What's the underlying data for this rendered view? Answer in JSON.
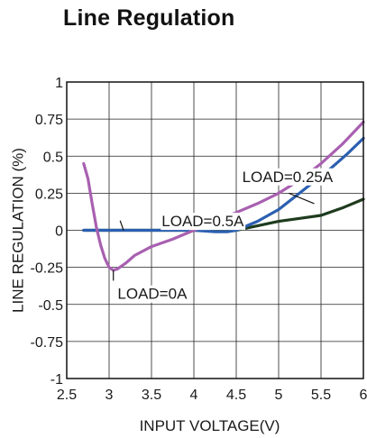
{
  "chart_data": {
    "type": "line",
    "title": "Line Regulation",
    "xlabel": "INPUT VOLTAGE(V)",
    "ylabel": "LINE REGULATION (%)",
    "xlim": [
      2.5,
      6
    ],
    "ylim": [
      -1,
      1
    ],
    "xticks": [
      2.5,
      3,
      3.5,
      4,
      4.5,
      5,
      5.5,
      6
    ],
    "xtick_labels": [
      "2.5",
      "3",
      "3.5",
      "4",
      "4.5",
      "5",
      "5.5",
      "6"
    ],
    "yticks": [
      1,
      0.75,
      0.5,
      0.25,
      0,
      -0.25,
      -0.5,
      -0.75,
      -1
    ],
    "ytick_labels": [
      "1",
      "0.75",
      "0.5",
      "0.25",
      "0",
      "-0.25",
      "-0.5",
      "-0.75",
      "-1"
    ],
    "grid": true,
    "series": [
      {
        "name": "LOAD=0A",
        "color": "#a860b0",
        "x": [
          2.7,
          2.75,
          2.8,
          2.85,
          2.9,
          2.95,
          3.0,
          3.05,
          3.1,
          3.2,
          3.3,
          3.5,
          3.75,
          4.0,
          4.25,
          4.5,
          4.75,
          5.0,
          5.25,
          5.5,
          5.75,
          6.0
        ],
        "y": [
          0.45,
          0.35,
          0.18,
          0.02,
          -0.1,
          -0.19,
          -0.25,
          -0.27,
          -0.26,
          -0.22,
          -0.17,
          -0.11,
          -0.06,
          0.0,
          0.06,
          0.12,
          0.18,
          0.25,
          0.34,
          0.45,
          0.58,
          0.73
        ]
      },
      {
        "name": "LOAD=0.25A",
        "color": "#2b5fb0",
        "x": [
          2.7,
          3.0,
          3.5,
          4.0,
          4.25,
          4.4,
          4.5,
          4.75,
          5.0,
          5.2,
          5.4,
          5.6,
          5.8,
          6.0
        ],
        "y": [
          0.0,
          0.0,
          0.0,
          0.0,
          -0.01,
          -0.01,
          0.0,
          0.06,
          0.14,
          0.23,
          0.32,
          0.41,
          0.51,
          0.62
        ]
      },
      {
        "name": "LOAD=0.5A",
        "color": "#1e3b1e",
        "x": [
          2.7,
          3.0,
          3.5,
          4.0,
          4.5,
          4.75,
          5.0,
          5.25,
          5.5,
          5.75,
          6.0
        ],
        "y": [
          0.0,
          0.0,
          0.0,
          0.0,
          0.0,
          0.03,
          0.06,
          0.08,
          0.1,
          0.15,
          0.21
        ]
      }
    ],
    "annotations": [
      {
        "text": "LOAD=0.25A",
        "x": 4.57,
        "y": 0.36,
        "pointer": [
          [
            5.12,
            0.25
          ],
          [
            5.42,
            0.18
          ]
        ]
      },
      {
        "text": "LOAD=0.5A",
        "x": 3.62,
        "y": 0.06,
        "pointer": [
          [
            3.13,
            0.065
          ],
          [
            3.17,
            0.0
          ]
        ]
      },
      {
        "text": "LOAD=0A",
        "x": 3.1,
        "y": -0.43,
        "pointer": [
          [
            3.05,
            -0.34
          ],
          [
            3.05,
            -0.27
          ]
        ]
      }
    ]
  }
}
